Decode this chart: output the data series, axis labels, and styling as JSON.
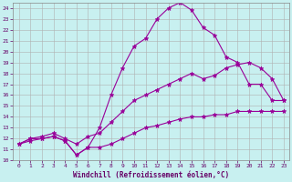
{
  "xlabel": "Windchill (Refroidissement éolien,°C)",
  "bg_color": "#c8f0f0",
  "line_color": "#990099",
  "grid_color": "#b0b0b0",
  "xlim": [
    -0.5,
    23.5
  ],
  "ylim": [
    10,
    24.5
  ],
  "yticks": [
    10,
    11,
    12,
    13,
    14,
    15,
    16,
    17,
    18,
    19,
    20,
    21,
    22,
    23,
    24
  ],
  "xticks": [
    0,
    1,
    2,
    3,
    4,
    5,
    6,
    7,
    8,
    9,
    10,
    11,
    12,
    13,
    14,
    15,
    16,
    17,
    18,
    19,
    20,
    21,
    22,
    23
  ],
  "lines": [
    {
      "x": [
        0,
        1,
        2,
        3,
        4,
        5,
        6,
        7,
        8,
        9,
        10,
        11,
        12,
        13,
        14,
        15,
        16,
        17,
        18,
        19,
        20,
        21,
        22,
        23
      ],
      "y": [
        11.5,
        12.0,
        12.0,
        12.2,
        11.8,
        10.5,
        11.2,
        13.0,
        16.0,
        18.5,
        20.5,
        21.2,
        23.0,
        24.0,
        24.5,
        23.8,
        22.2,
        21.5,
        19.5,
        19.0,
        17.0,
        17.0,
        15.5,
        15.5
      ]
    },
    {
      "x": [
        0,
        1,
        2,
        3,
        4,
        5,
        6,
        7,
        8,
        9,
        10,
        11,
        12,
        13,
        14,
        15,
        16,
        17,
        18,
        19,
        20,
        21,
        22,
        23
      ],
      "y": [
        11.5,
        12.0,
        12.2,
        12.5,
        12.0,
        11.5,
        12.2,
        12.5,
        13.5,
        14.5,
        15.5,
        16.0,
        16.5,
        17.0,
        17.5,
        18.0,
        17.5,
        17.8,
        18.5,
        18.8,
        19.0,
        18.5,
        17.5,
        15.5
      ]
    },
    {
      "x": [
        0,
        1,
        2,
        3,
        4,
        5,
        6,
        7,
        8,
        9,
        10,
        11,
        12,
        13,
        14,
        15,
        16,
        17,
        18,
        19,
        20,
        21,
        22,
        23
      ],
      "y": [
        11.5,
        11.8,
        12.0,
        12.2,
        11.8,
        10.5,
        11.2,
        11.2,
        11.5,
        12.0,
        12.5,
        13.0,
        13.2,
        13.5,
        13.8,
        14.0,
        14.0,
        14.2,
        14.2,
        14.5,
        14.5,
        14.5,
        14.5,
        14.5
      ]
    }
  ]
}
